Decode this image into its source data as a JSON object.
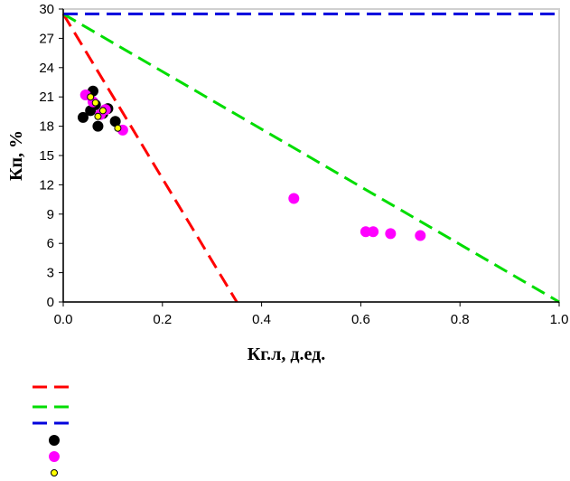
{
  "chart_data": {
    "type": "scatter",
    "xlabel": "Кг.л, д.ед.",
    "ylabel": "Кп, %",
    "xlim": [
      0,
      1.0
    ],
    "ylim": [
      0,
      30
    ],
    "x_ticks": [
      "0.0",
      "0.2",
      "0.4",
      "0.6",
      "0.8",
      "1.0"
    ],
    "y_ticks": [
      "0",
      "3",
      "6",
      "9",
      "12",
      "15",
      "18",
      "21",
      "24",
      "27",
      "30"
    ],
    "grid": false,
    "legend_position": "bottom",
    "lines": [
      {
        "color": "#ff0000",
        "style": "dashed",
        "x": [
          0.0,
          0.35
        ],
        "y": [
          29.5,
          0
        ]
      },
      {
        "color": "#00dd00",
        "style": "dashed",
        "x": [
          0.0,
          1.0
        ],
        "y": [
          29.5,
          0
        ]
      },
      {
        "color": "#0000dd",
        "style": "dashed",
        "x": [
          0.0,
          1.0
        ],
        "y": [
          29.5,
          29.5
        ]
      }
    ],
    "series": [
      {
        "marker": "circle",
        "color": "#000000",
        "points": [
          {
            "x": 0.04,
            "y": 18.9
          },
          {
            "x": 0.055,
            "y": 19.6
          },
          {
            "x": 0.06,
            "y": 21.6
          },
          {
            "x": 0.065,
            "y": 20.2
          },
          {
            "x": 0.07,
            "y": 18.0
          },
          {
            "x": 0.08,
            "y": 19.3
          },
          {
            "x": 0.09,
            "y": 19.8
          },
          {
            "x": 0.105,
            "y": 18.5
          }
        ]
      },
      {
        "marker": "circle",
        "color": "#ff00ff",
        "points": [
          {
            "x": 0.045,
            "y": 21.2
          },
          {
            "x": 0.06,
            "y": 20.5
          },
          {
            "x": 0.075,
            "y": 19.2
          },
          {
            "x": 0.085,
            "y": 19.7
          },
          {
            "x": 0.12,
            "y": 17.6
          },
          {
            "x": 0.465,
            "y": 10.6
          },
          {
            "x": 0.61,
            "y": 7.2
          },
          {
            "x": 0.625,
            "y": 7.2
          },
          {
            "x": 0.66,
            "y": 7.0
          },
          {
            "x": 0.72,
            "y": 6.8
          }
        ]
      },
      {
        "marker": "circle",
        "color": "#ffff00",
        "edge_color": "#000000",
        "points": [
          {
            "x": 0.055,
            "y": 21.0
          },
          {
            "x": 0.065,
            "y": 20.4
          },
          {
            "x": 0.07,
            "y": 19.0
          },
          {
            "x": 0.08,
            "y": 19.6
          },
          {
            "x": 0.11,
            "y": 17.8
          }
        ]
      }
    ],
    "legend": [
      {
        "kind": "line",
        "color": "#ff0000",
        "style": "dashed",
        "label": ""
      },
      {
        "kind": "line",
        "color": "#00dd00",
        "style": "dashed",
        "label": ""
      },
      {
        "kind": "line",
        "color": "#0000dd",
        "style": "dashed",
        "label": ""
      },
      {
        "kind": "marker",
        "color": "#000000",
        "label": ""
      },
      {
        "kind": "marker",
        "color": "#ff00ff",
        "label": ""
      },
      {
        "kind": "marker",
        "color": "#ffff00",
        "edge_color": "#000000",
        "label": ""
      }
    ]
  }
}
